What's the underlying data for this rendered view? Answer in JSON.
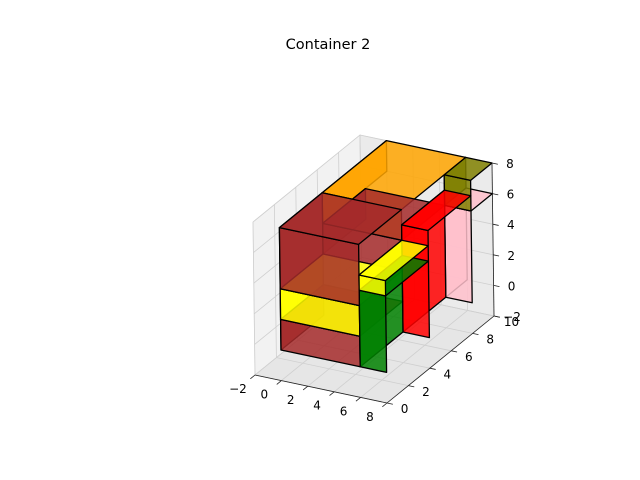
{
  "chart_data": {
    "type": "3d-box",
    "title": "Container 2",
    "x_ticks": [
      "−2",
      "0",
      "2",
      "4",
      "6",
      "8"
    ],
    "y_ticks": [
      "0",
      "2",
      "4",
      "6",
      "8",
      "10"
    ],
    "z_ticks": [
      "−2",
      "0",
      "2",
      "4",
      "6",
      "8"
    ],
    "xlim": [
      -2,
      8
    ],
    "ylim": [
      0,
      10
    ],
    "zlim": [
      -2,
      8
    ],
    "grid": true,
    "boxes": [
      {
        "x": [
          0,
          6
        ],
        "y": [
          0,
          4
        ],
        "z": [
          0,
          2
        ],
        "color": "#a52a2a"
      },
      {
        "x": [
          0,
          6
        ],
        "y": [
          0,
          4
        ],
        "z": [
          2,
          4
        ],
        "color": "#ffff00"
      },
      {
        "x": [
          0,
          6
        ],
        "y": [
          0,
          4
        ],
        "z": [
          4,
          8
        ],
        "color": "#a52a2a"
      },
      {
        "x": [
          0,
          6
        ],
        "y": [
          4,
          8
        ],
        "z": [
          4,
          6
        ],
        "color": "#a52a2a"
      },
      {
        "x": [
          0,
          6
        ],
        "y": [
          4,
          10
        ],
        "z": [
          6,
          8
        ],
        "color": "#ffa500"
      },
      {
        "x": [
          6,
          8
        ],
        "y": [
          8,
          10
        ],
        "z": [
          6,
          8
        ],
        "color": "#808000"
      },
      {
        "x": [
          6,
          8
        ],
        "y": [
          8,
          10
        ],
        "z": [
          0,
          6
        ],
        "color": "#ffc0cb"
      },
      {
        "x": [
          6,
          8
        ],
        "y": [
          4,
          8
        ],
        "z": [
          0,
          7
        ],
        "color": "#ff0000"
      },
      {
        "x": [
          6,
          8
        ],
        "y": [
          0,
          4
        ],
        "z": [
          0,
          5
        ],
        "color": "#008000"
      },
      {
        "x": [
          6,
          8
        ],
        "y": [
          0,
          4
        ],
        "z": [
          5,
          6
        ],
        "color": "#ffff00"
      }
    ]
  }
}
